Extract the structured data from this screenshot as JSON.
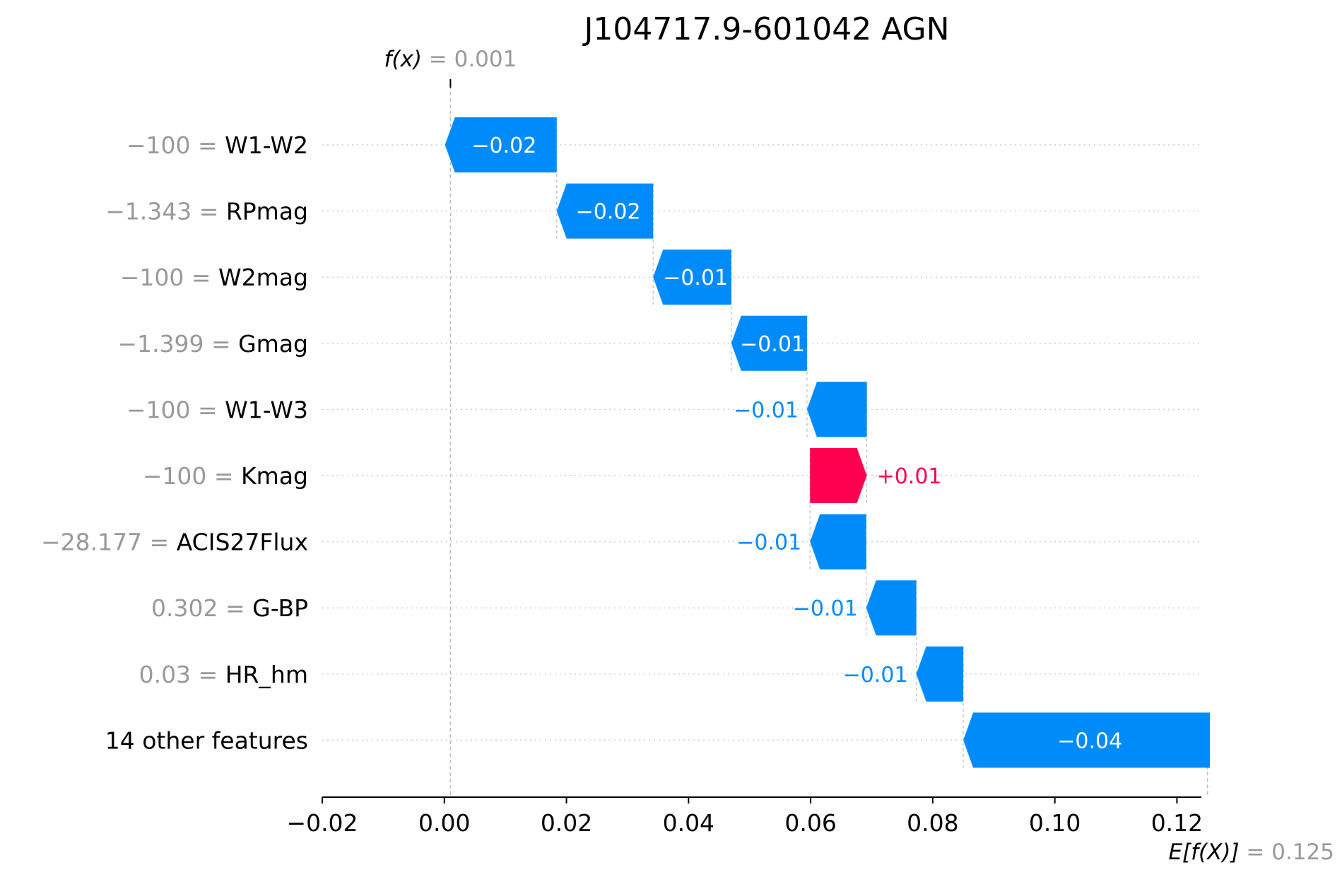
{
  "chart_data": {
    "type": "waterfall",
    "title": "J104717.9-601042 AGN",
    "xlim": [
      -0.02,
      0.124
    ],
    "xticks": [
      -0.02,
      0.0,
      0.02,
      0.04,
      0.06,
      0.08,
      0.1,
      0.12
    ],
    "xtick_labels": [
      "−0.02",
      "0.00",
      "0.02",
      "0.04",
      "0.06",
      "0.08",
      "0.10",
      "0.12"
    ],
    "fx": {
      "label_italic": "f(x)",
      "eq": " = ",
      "value_text": "0.001",
      "value": 0.001
    },
    "efx": {
      "label_italic": "E[f(X)]",
      "eq": " = ",
      "value_text": "0.125",
      "value": 0.125
    },
    "grid": "dotted horizontal per row",
    "features": [
      {
        "feature_value": "−100",
        "eq": " = ",
        "name": "W1-W2",
        "start": 0.0184,
        "end": 0.0001,
        "label": "−0.02"
      },
      {
        "feature_value": "−1.343",
        "eq": " = ",
        "name": "RPmag",
        "start": 0.0342,
        "end": 0.0184,
        "label": "−0.02"
      },
      {
        "feature_value": "−100",
        "eq": " = ",
        "name": "W2mag",
        "start": 0.047,
        "end": 0.0342,
        "label": "−0.01"
      },
      {
        "feature_value": "−1.399",
        "eq": " = ",
        "name": "Gmag",
        "start": 0.0594,
        "end": 0.047,
        "label": "−0.01"
      },
      {
        "feature_value": "−100",
        "eq": " = ",
        "name": "W1-W3",
        "start": 0.0692,
        "end": 0.0594,
        "label": "−0.01"
      },
      {
        "feature_value": "−100",
        "eq": " = ",
        "name": "Kmag",
        "start": 0.0599,
        "end": 0.0692,
        "label": "+0.01"
      },
      {
        "feature_value": "−28.177",
        "eq": " = ",
        "name": "ACIS27Flux",
        "start": 0.0691,
        "end": 0.0599,
        "label": "−0.01"
      },
      {
        "feature_value": "0.302",
        "eq": " = ",
        "name": "G-BP",
        "start": 0.0773,
        "end": 0.0691,
        "label": "−0.01"
      },
      {
        "feature_value": "0.03",
        "eq": " = ",
        "name": "HR_hm",
        "start": 0.085,
        "end": 0.0773,
        "label": "−0.01"
      },
      {
        "feature_value": "",
        "eq": "",
        "name": "14 other features",
        "start": 0.1254,
        "end": 0.085,
        "label": "−0.04"
      }
    ],
    "colors": {
      "negative": "#008bfb",
      "positive": "#ff0051",
      "axis": "#000000",
      "muted": "#999999",
      "grid": "#cccccc",
      "bar_label_inside": "#ffffff"
    }
  }
}
